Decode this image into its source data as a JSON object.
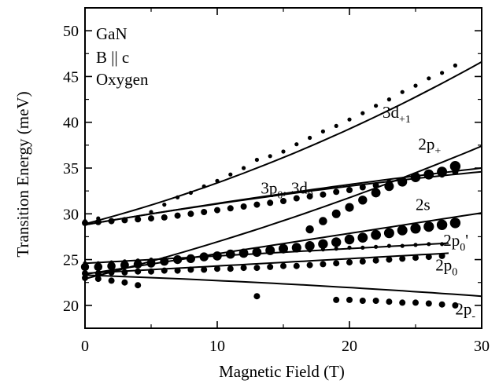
{
  "chart_data": {
    "type": "scatter",
    "xlabel": "Magnetic Field (T)",
    "ylabel": "Transition Energy (meV)",
    "xlim": [
      0,
      30
    ],
    "ylim": [
      17.5,
      52.5
    ],
    "xticks": [
      "0",
      "10",
      "20",
      "30"
    ],
    "yticks": [
      "20",
      "25",
      "30",
      "35",
      "40",
      "45",
      "50"
    ],
    "legend_text": [
      "GaN",
      "B || c",
      "Oxygen"
    ],
    "annotations": [
      {
        "base": "3d",
        "sub": "+1",
        "tail": "",
        "x": 22.5,
        "y": 40.5
      },
      {
        "base": "2p",
        "sub": "+",
        "tail": "",
        "x": 25.2,
        "y": 37.0
      },
      {
        "base": "3p",
        "sub": "0",
        "tail": ", 3d",
        "sub2": "0",
        "x": 13.3,
        "y": 32.2
      },
      {
        "base": "2s",
        "sub": "",
        "tail": "",
        "x": 25.0,
        "y": 30.4
      },
      {
        "base": "2p",
        "sub": "0",
        "tail": "'",
        "x": 27.1,
        "y": 26.5
      },
      {
        "base": "2p",
        "sub": "0",
        "tail": "",
        "x": 26.5,
        "y": 23.8
      },
      {
        "base": "2p",
        "sub": "-",
        "tail": "",
        "x": 28.0,
        "y": 19.0
      }
    ],
    "fit_curves": [
      {
        "label": "3d+1",
        "x": [
          0,
          30
        ],
        "y": [
          28.9,
          46.6
        ],
        "curvature": 1.6
      },
      {
        "label": "2p+",
        "x": [
          0,
          30
        ],
        "y": [
          22.9,
          37.4
        ],
        "curvature": 0.9
      },
      {
        "label": "3p0",
        "x": [
          0,
          30
        ],
        "y": [
          28.8,
          35.0
        ],
        "curvature": -0.3
      },
      {
        "label": "3d0",
        "x": [
          0,
          30
        ],
        "y": [
          28.8,
          34.6
        ],
        "curvature": -0.4
      },
      {
        "label": "2s",
        "x": [
          0,
          30
        ],
        "y": [
          23.4,
          30.1
        ],
        "curvature": 0.0
      },
      {
        "label": "2p0'",
        "x": [
          0,
          27.5
        ],
        "y": [
          24.6,
          26.8
        ],
        "curvature": 0.0
      },
      {
        "label": "2p0",
        "x": [
          0,
          27.5
        ],
        "y": [
          23.5,
          25.7
        ],
        "curvature": 0.0
      },
      {
        "label": "2p-",
        "x": [
          0,
          30
        ],
        "y": [
          23.3,
          21.0
        ],
        "curvature": -0.2
      }
    ],
    "series": [
      {
        "name": "3d+1",
        "size": "small",
        "x": [
          0,
          1,
          2,
          3,
          4,
          5,
          6,
          7,
          8,
          9,
          10,
          11,
          12,
          13,
          14,
          15,
          16,
          17,
          18,
          19,
          20,
          21,
          22,
          23,
          24,
          25,
          26,
          27,
          28
        ],
        "y": [
          29.2,
          29.5,
          29.3,
          29.4,
          29.6,
          30.2,
          31.0,
          31.8,
          32.3,
          33.0,
          33.6,
          34.3,
          35.0,
          35.9,
          36.3,
          36.8,
          37.6,
          38.3,
          39.0,
          39.6,
          40.3,
          41.0,
          41.8,
          42.5,
          43.3,
          44.0,
          44.8,
          45.4,
          46.2
        ]
      },
      {
        "name": "3p0, 3d0",
        "size": "medium",
        "x": [
          0,
          1,
          2,
          3,
          4,
          5,
          6,
          7,
          8,
          9,
          10,
          11,
          12,
          13,
          14,
          15,
          16,
          17,
          18,
          19,
          20,
          21,
          22,
          23,
          24,
          25,
          26,
          27,
          28
        ],
        "y": [
          29.0,
          29.1,
          29.2,
          29.3,
          29.4,
          29.5,
          29.6,
          29.8,
          30.0,
          30.2,
          30.4,
          30.6,
          30.8,
          31.0,
          31.2,
          31.4,
          31.7,
          31.9,
          32.1,
          32.4,
          32.6,
          32.9,
          33.1,
          33.4,
          33.6,
          33.9,
          34.1,
          34.3,
          34.6
        ]
      },
      {
        "name": "2p+",
        "size": "large",
        "x": [
          17,
          18,
          19,
          20,
          21,
          22,
          23,
          24,
          25,
          26,
          27,
          28
        ],
        "y": [
          28.3,
          29.2,
          30.0,
          30.7,
          31.5,
          32.3,
          33.0,
          33.5,
          34.0,
          34.3,
          34.6,
          35.2
        ]
      },
      {
        "name": "2s",
        "size": "large",
        "x": [
          0,
          1,
          2,
          3,
          4,
          5,
          6,
          7,
          8,
          9,
          10,
          11,
          12,
          13,
          14,
          15,
          16,
          17,
          18,
          19,
          20,
          21,
          22,
          23,
          24,
          25,
          26,
          27,
          28
        ],
        "y": [
          24.2,
          24.2,
          24.3,
          24.4,
          24.5,
          24.6,
          24.8,
          25.0,
          25.1,
          25.3,
          25.4,
          25.6,
          25.7,
          25.8,
          26.0,
          26.2,
          26.3,
          26.5,
          26.7,
          26.9,
          27.2,
          27.4,
          27.7,
          27.9,
          28.2,
          28.4,
          28.6,
          28.8,
          29.0
        ]
      },
      {
        "name": "2p0'",
        "size": "small",
        "x": [
          0,
          1,
          2,
          3,
          4,
          5,
          6,
          7,
          8,
          9,
          10,
          11,
          12,
          13,
          14,
          15,
          16,
          17,
          18,
          19,
          20,
          21,
          22,
          23,
          24,
          25,
          26,
          27
        ],
        "y": [
          24.6,
          24.6,
          24.7,
          24.8,
          24.9,
          25.0,
          25.1,
          25.2,
          25.3,
          25.4,
          25.5,
          25.5,
          25.6,
          25.7,
          25.8,
          25.9,
          26.0,
          26.0,
          26.1,
          26.2,
          26.3,
          26.3,
          26.4,
          26.5,
          26.5,
          26.6,
          26.7,
          26.7
        ]
      },
      {
        "name": "2p0",
        "size": "medium",
        "x": [
          0,
          1,
          2,
          3,
          4,
          5,
          6,
          7,
          8,
          9,
          10,
          11,
          12,
          13,
          14,
          15,
          16,
          17,
          18,
          19,
          20,
          21,
          22,
          23,
          24,
          25,
          26,
          27
        ],
        "y": [
          23.5,
          23.5,
          23.6,
          23.6,
          23.7,
          23.7,
          23.8,
          23.8,
          23.9,
          23.9,
          24.0,
          24.0,
          24.1,
          24.1,
          24.2,
          24.3,
          24.3,
          24.4,
          24.5,
          24.6,
          24.7,
          24.8,
          24.9,
          25.0,
          25.1,
          25.2,
          25.3,
          25.4
        ]
      },
      {
        "name": "2p-",
        "size": "medium",
        "x": [
          0,
          1,
          2,
          3,
          4,
          13,
          19,
          20,
          21,
          22,
          23,
          24,
          25,
          26,
          27,
          28
        ],
        "y": [
          23.0,
          22.9,
          22.7,
          22.5,
          22.2,
          21.0,
          20.6,
          20.6,
          20.5,
          20.5,
          20.4,
          20.3,
          20.3,
          20.2,
          20.1,
          20.0
        ]
      }
    ]
  }
}
